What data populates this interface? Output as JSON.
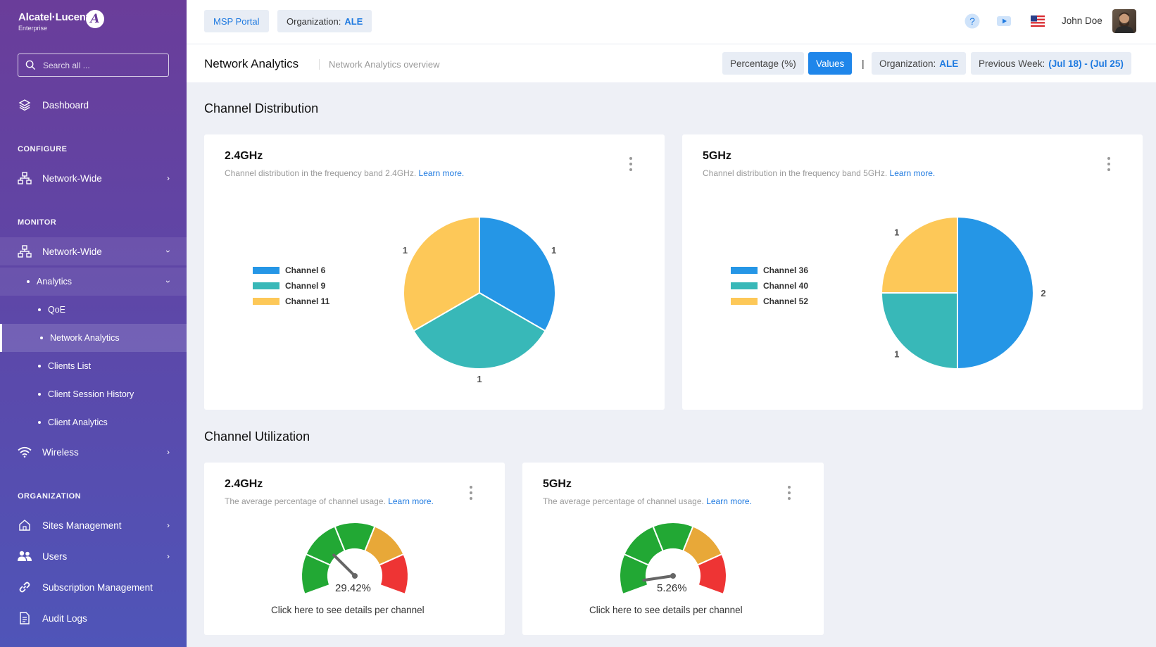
{
  "brand": {
    "name": "Alcatel·Lucent",
    "sub": "Enterprise",
    "emblem": "A"
  },
  "search": {
    "placeholder": "Search all ..."
  },
  "sidebar": {
    "dashboard": "Dashboard",
    "configure_label": "CONFIGURE",
    "configure_network": "Network-Wide",
    "monitor_label": "MONITOR",
    "monitor_network": "Network-Wide",
    "analytics": "Analytics",
    "qoe": "QoE",
    "network_analytics": "Network Analytics",
    "clients_list": "Clients List",
    "client_session_history": "Client Session History",
    "client_analytics": "Client Analytics",
    "wireless": "Wireless",
    "organization_label": "ORGANIZATION",
    "sites_management": "Sites Management",
    "users": "Users",
    "subscription_management": "Subscription Management",
    "audit_logs": "Audit Logs"
  },
  "topbar": {
    "msp_portal": "MSP Portal",
    "org_label": "Organization:",
    "org_value": "ALE",
    "user_name": "John Doe"
  },
  "subheader": {
    "title": "Network Analytics",
    "breadcrumb": "Network Analytics overview",
    "percentage": "Percentage (%)",
    "values": "Values",
    "separator": "|",
    "org_label": "Organization:",
    "org_value": "ALE",
    "period_label": "Previous Week:",
    "period_value": "(Jul 18) - (Jul 25)"
  },
  "channel_distribution": {
    "title": "Channel Distribution",
    "cards": [
      {
        "title": "2.4GHz",
        "desc": "Channel distribution in the frequency band 2.4GHz.",
        "link": "Learn more."
      },
      {
        "title": "5GHz",
        "desc": "Channel distribution in the frequency band 5GHz.",
        "link": "Learn more."
      }
    ]
  },
  "channel_utilization": {
    "title": "Channel Utilization",
    "cards": [
      {
        "title": "2.4GHz",
        "desc": "The average percentage of channel usage.",
        "link": "Learn more.",
        "value": "29.42%",
        "cta": "Click here to see details per channel"
      },
      {
        "title": "5GHz",
        "desc": "The average percentage of channel usage.",
        "link": "Learn more.",
        "value": "5.26%",
        "cta": "Click here to see details per channel"
      }
    ]
  },
  "colors": {
    "blue": "#2596e6",
    "teal": "#38b8b8",
    "yellow": "#fdc858",
    "green": "#22a834",
    "orange": "#e8a838",
    "red": "#ee3434"
  },
  "chart_data": [
    {
      "type": "pie",
      "title": "2.4GHz",
      "categories": [
        "Channel 6",
        "Channel 9",
        "Channel 11"
      ],
      "values": [
        1,
        1,
        1
      ],
      "legend": "left"
    },
    {
      "type": "pie",
      "title": "5GHz",
      "categories": [
        "Channel 36",
        "Channel 40",
        "Channel 52"
      ],
      "values": [
        2,
        1,
        1
      ],
      "legend": "left"
    },
    {
      "type": "gauge",
      "title": "2.4GHz",
      "value": 29.42,
      "unit": "%",
      "range": [
        0,
        100
      ]
    },
    {
      "type": "gauge",
      "title": "5GHz",
      "value": 5.26,
      "unit": "%",
      "range": [
        0,
        100
      ]
    }
  ]
}
